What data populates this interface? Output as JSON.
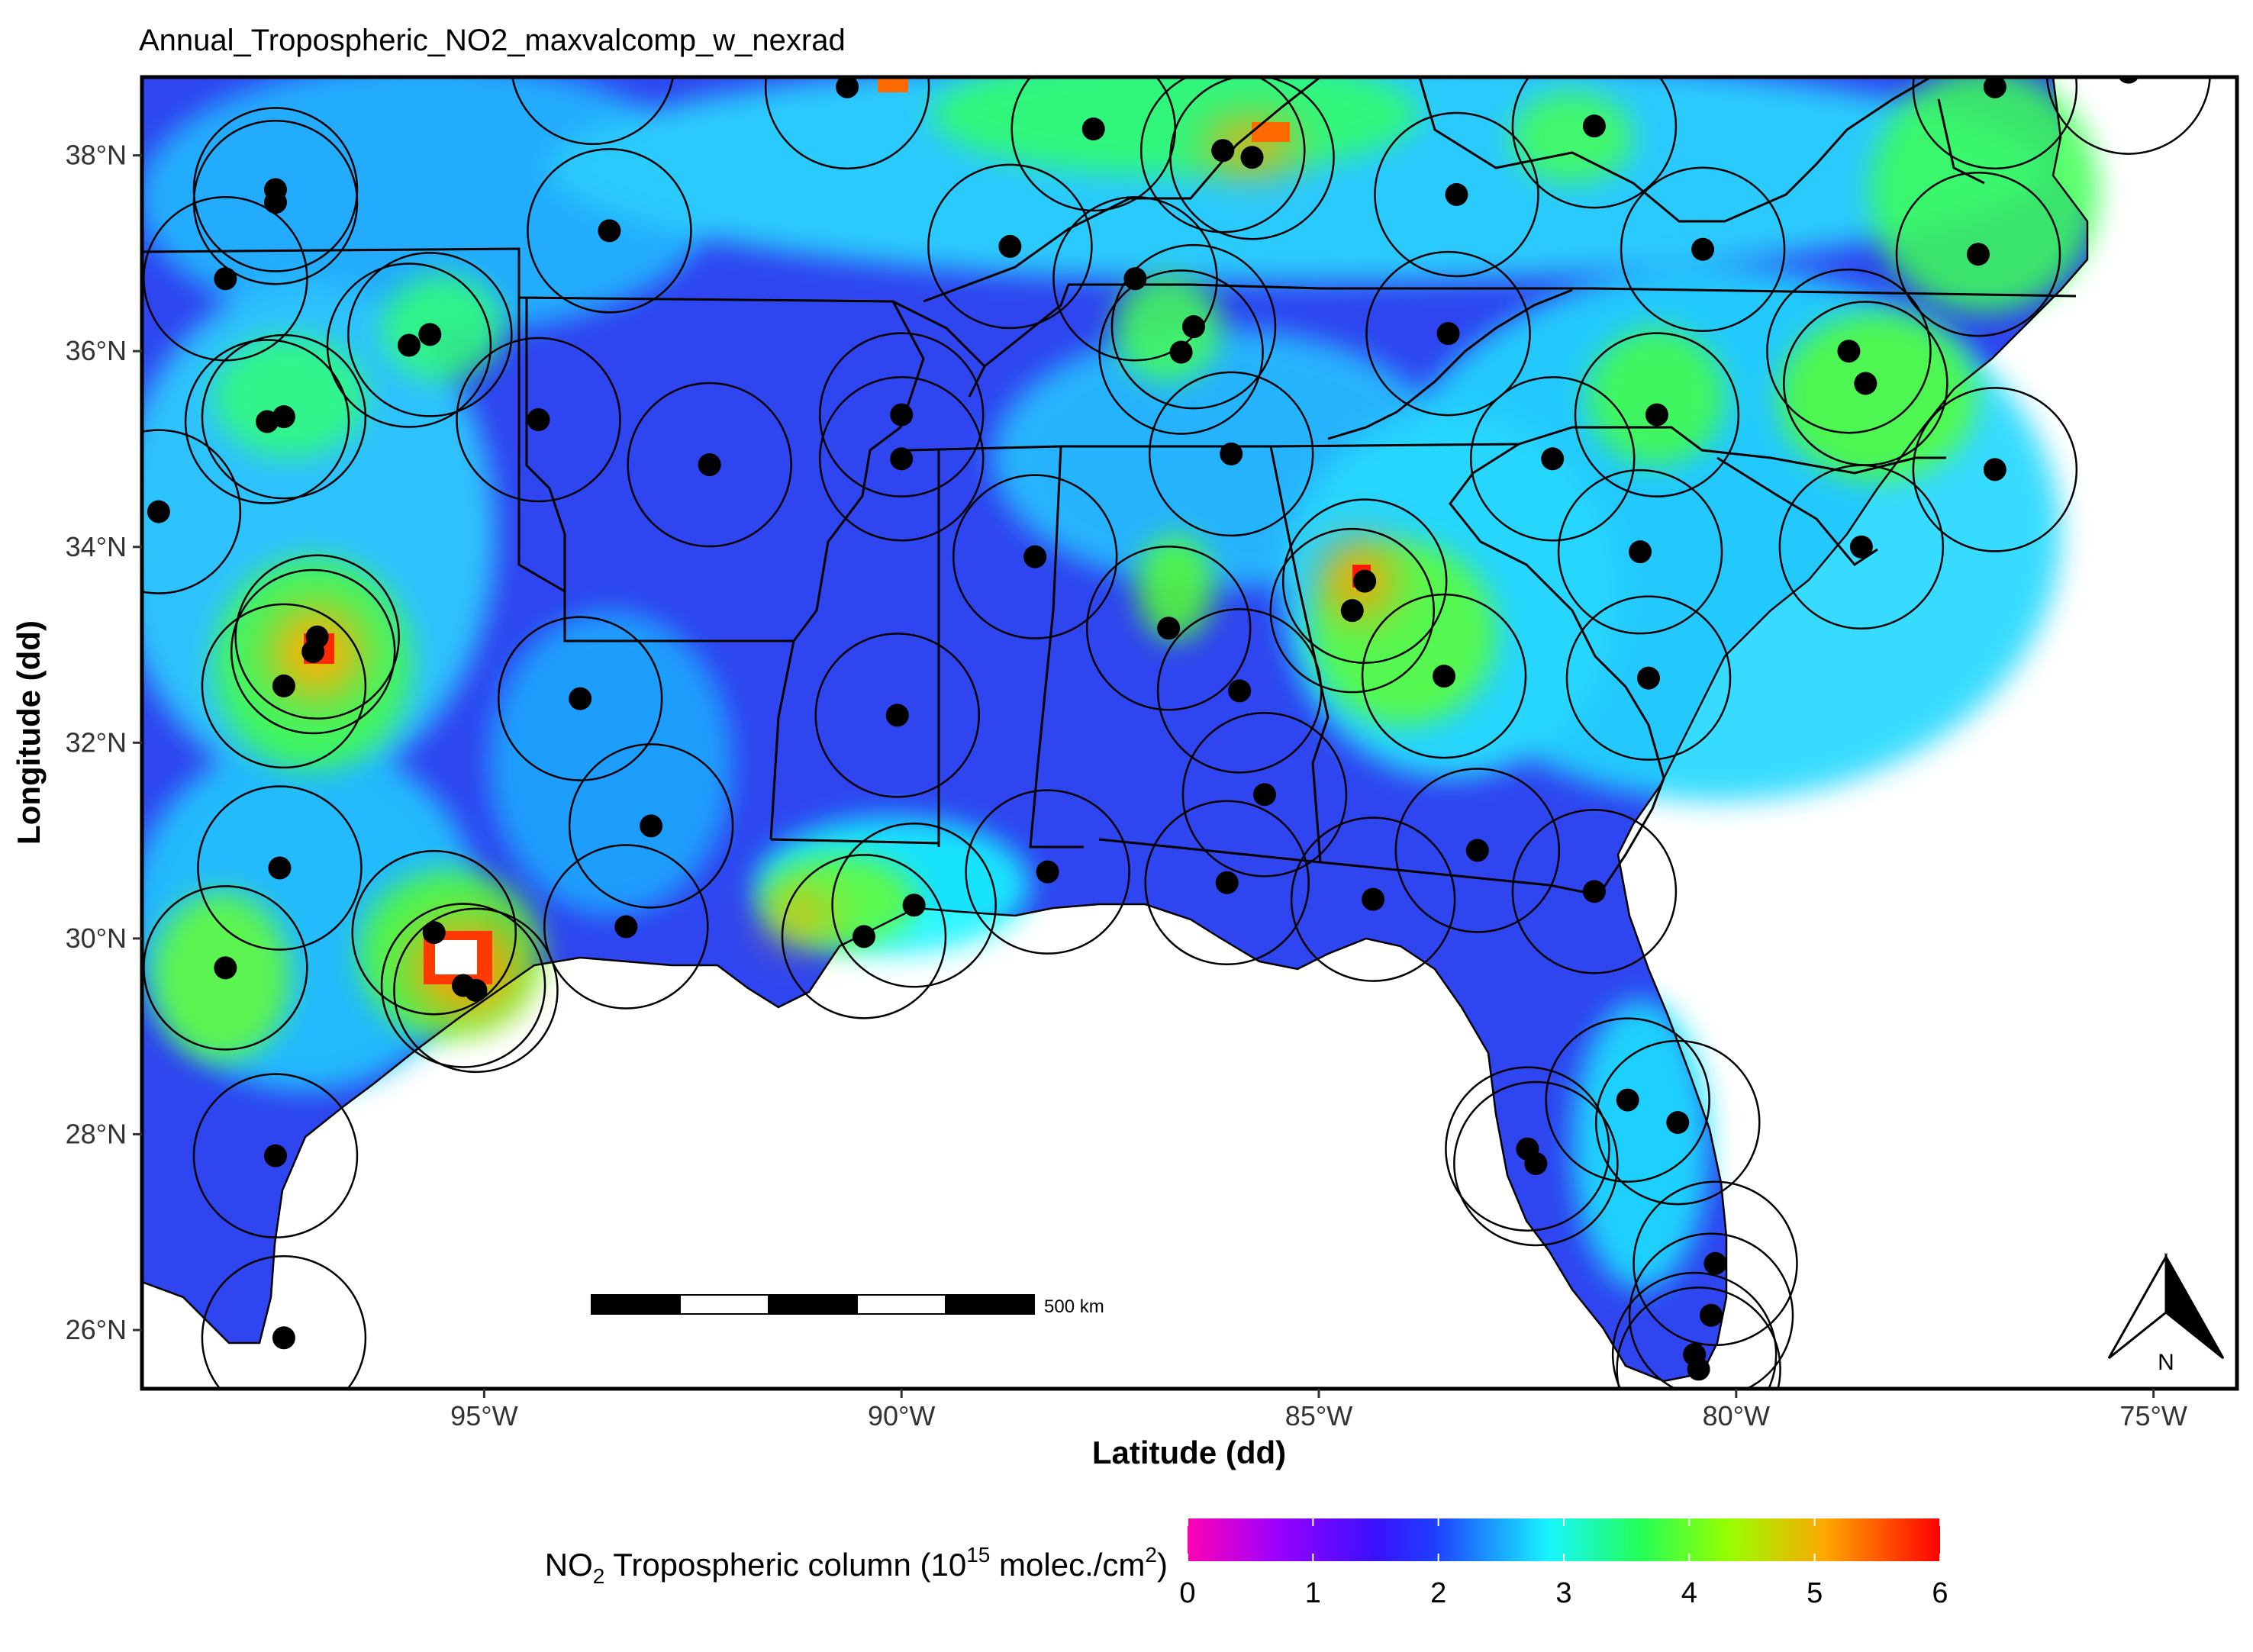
{
  "title": "Annual_Tropospheric_NO2_maxvalcomp_w_nexrad",
  "axes": {
    "xlabel": "Latitude (dd)",
    "ylabel": "Longitude (dd)",
    "x_ticks": [
      "95°W",
      "90°W",
      "85°W",
      "80°W",
      "75°W"
    ],
    "y_ticks": [
      "38°N",
      "36°N",
      "34°N",
      "32°N",
      "30°N",
      "28°N",
      "26°N"
    ],
    "lon_range": [
      -99.1,
      -74.0
    ],
    "lat_range": [
      25.4,
      38.8
    ]
  },
  "scale_bar": {
    "label": "500 km"
  },
  "north_arrow": {
    "label": "N",
    "icon": "north-arrow-icon"
  },
  "legend": {
    "title_prefix": "NO",
    "title_sub": "2",
    "title_mid": " Tropospheric column (10",
    "title_sup": "15",
    "title_mid2": " molec./cm",
    "title_sup2": "2",
    "title_end": ")",
    "ticks": [
      "0",
      "1",
      "2",
      "3",
      "4",
      "5",
      "6"
    ],
    "colors": [
      "#ff00b4",
      "#8a00ff",
      "#2b1cff",
      "#1f55ff",
      "#18f5ff",
      "#22ff5a",
      "#98ff00",
      "#ffa500",
      "#ff0000"
    ]
  },
  "colors": {
    "background_field": "#2f45f0",
    "land_mid": "#2fa6ff",
    "hotspot": "#ff3a00",
    "station": "#000000",
    "frame": "#000000"
  },
  "stations": [
    {
      "lon": -98.9,
      "lat": 34.36
    },
    {
      "lon": -97.5,
      "lat": 37.65
    },
    {
      "lon": -97.5,
      "lat": 37.52
    },
    {
      "lon": -98.1,
      "lat": 36.74
    },
    {
      "lon": -95.9,
      "lat": 36.06
    },
    {
      "lon": -95.65,
      "lat": 36.17
    },
    {
      "lon": -97.6,
      "lat": 35.28
    },
    {
      "lon": -97.4,
      "lat": 35.33
    },
    {
      "lon": -93.5,
      "lat": 37.23
    },
    {
      "lon": -94.35,
      "lat": 35.3
    },
    {
      "lon": -92.3,
      "lat": 34.84
    },
    {
      "lon": -97.0,
      "lat": 33.08
    },
    {
      "lon": -97.05,
      "lat": 32.93
    },
    {
      "lon": -97.4,
      "lat": 32.58
    },
    {
      "lon": -93.85,
      "lat": 32.45
    },
    {
      "lon": -93.0,
      "lat": 31.15
    },
    {
      "lon": -93.3,
      "lat": 30.12
    },
    {
      "lon": -97.45,
      "lat": 30.72
    },
    {
      "lon": -98.1,
      "lat": 29.7
    },
    {
      "lon": -95.6,
      "lat": 30.06
    },
    {
      "lon": -95.25,
      "lat": 29.52
    },
    {
      "lon": -95.1,
      "lat": 29.47
    },
    {
      "lon": -97.5,
      "lat": 27.78
    },
    {
      "lon": -97.4,
      "lat": 25.92
    },
    {
      "lon": -90.65,
      "lat": 38.7
    },
    {
      "lon": -87.7,
      "lat": 38.27
    },
    {
      "lon": -86.15,
      "lat": 38.05
    },
    {
      "lon": -85.8,
      "lat": 37.98
    },
    {
      "lon": -88.7,
      "lat": 37.07
    },
    {
      "lon": -87.2,
      "lat": 36.74
    },
    {
      "lon": -86.5,
      "lat": 36.25
    },
    {
      "lon": -86.65,
      "lat": 35.99
    },
    {
      "lon": -90.0,
      "lat": 35.35
    },
    {
      "lon": -90.0,
      "lat": 34.9
    },
    {
      "lon": -86.05,
      "lat": 34.95
    },
    {
      "lon": -88.4,
      "lat": 33.9
    },
    {
      "lon": -86.8,
      "lat": 33.17
    },
    {
      "lon": -84.45,
      "lat": 33.65
    },
    {
      "lon": -84.6,
      "lat": 33.35
    },
    {
      "lon": -83.5,
      "lat": 32.68
    },
    {
      "lon": -85.95,
      "lat": 32.53
    },
    {
      "lon": -90.05,
      "lat": 32.28
    },
    {
      "lon": -85.65,
      "lat": 31.47
    },
    {
      "lon": -88.25,
      "lat": 30.68
    },
    {
      "lon": -89.85,
      "lat": 30.34
    },
    {
      "lon": -90.45,
      "lat": 30.02
    },
    {
      "lon": -86.1,
      "lat": 30.57
    },
    {
      "lon": -84.35,
      "lat": 30.4
    },
    {
      "lon": -83.1,
      "lat": 30.9
    },
    {
      "lon": -81.7,
      "lat": 30.48
    },
    {
      "lon": -83.35,
      "lat": 37.6
    },
    {
      "lon": -81.7,
      "lat": 38.3
    },
    {
      "lon": -83.45,
      "lat": 36.18
    },
    {
      "lon": -80.4,
      "lat": 37.04
    },
    {
      "lon": -82.2,
      "lat": 34.9
    },
    {
      "lon": -80.95,
      "lat": 35.35
    },
    {
      "lon": -78.65,
      "lat": 36.0
    },
    {
      "lon": -78.45,
      "lat": 35.67
    },
    {
      "lon": -77.1,
      "lat": 36.99
    },
    {
      "lon": -76.9,
      "lat": 34.79
    },
    {
      "lon": -78.5,
      "lat": 34.0
    },
    {
      "lon": -81.15,
      "lat": 33.95
    },
    {
      "lon": -81.05,
      "lat": 32.66
    },
    {
      "lon": -76.9,
      "lat": 38.7
    },
    {
      "lon": -75.3,
      "lat": 38.85
    },
    {
      "lon": -81.3,
      "lat": 28.35
    },
    {
      "lon": -80.7,
      "lat": 28.12
    },
    {
      "lon": -82.5,
      "lat": 27.85
    },
    {
      "lon": -82.4,
      "lat": 27.7
    },
    {
      "lon": -80.25,
      "lat": 26.68
    },
    {
      "lon": -80.3,
      "lat": 26.15
    },
    {
      "lon": -80.5,
      "lat": 25.75
    },
    {
      "lon": -80.45,
      "lat": 25.6
    },
    {
      "lon": -93.7,
      "lat": 38.95
    }
  ]
}
